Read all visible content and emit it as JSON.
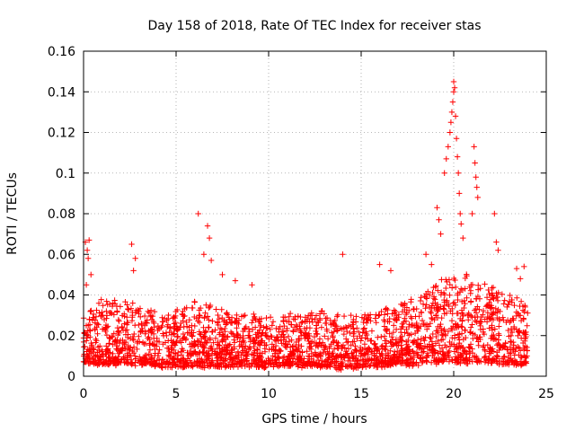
{
  "chart_data": {
    "type": "scatter",
    "title": "Day 158 of 2018, Rate Of TEC Index for receiver stas",
    "xlabel": "GPS time / hours",
    "ylabel": "ROTI / TECUs",
    "xlim": [
      0,
      25
    ],
    "ylim": [
      0,
      0.16
    ],
    "x_ticks": [
      0,
      5,
      10,
      15,
      20,
      25
    ],
    "x_tick_labels": [
      "0",
      "5",
      "10",
      "15",
      "20",
      "25"
    ],
    "y_ticks": [
      0,
      0.02,
      0.04,
      0.06,
      0.08,
      0.1,
      0.12,
      0.14,
      0.16
    ],
    "y_tick_labels": [
      "0",
      "0.02",
      "0.04",
      "0.06",
      "0.08",
      "0.1",
      "0.12",
      "0.14",
      "0.16"
    ],
    "grid": true,
    "marker": "+",
    "color": "#ff0000",
    "series": [
      {
        "name": "ROTI",
        "points": [
          [
            0.1,
            0.066
          ],
          [
            0.2,
            0.062
          ],
          [
            0.25,
            0.058
          ],
          [
            0.3,
            0.067
          ],
          [
            0.15,
            0.045
          ],
          [
            0.4,
            0.05
          ],
          [
            2.6,
            0.065
          ],
          [
            2.8,
            0.058
          ],
          [
            2.7,
            0.052
          ],
          [
            6.2,
            0.08
          ],
          [
            6.7,
            0.074
          ],
          [
            6.8,
            0.068
          ],
          [
            6.5,
            0.06
          ],
          [
            6.9,
            0.057
          ],
          [
            7.5,
            0.05
          ],
          [
            8.2,
            0.047
          ],
          [
            9.1,
            0.045
          ],
          [
            14.0,
            0.06
          ],
          [
            16.0,
            0.055
          ],
          [
            16.6,
            0.052
          ],
          [
            18.5,
            0.06
          ],
          [
            18.8,
            0.055
          ],
          [
            19.1,
            0.083
          ],
          [
            19.2,
            0.077
          ],
          [
            19.3,
            0.07
          ],
          [
            19.5,
            0.1
          ],
          [
            19.6,
            0.107
          ],
          [
            19.7,
            0.113
          ],
          [
            19.8,
            0.12
          ],
          [
            19.85,
            0.125
          ],
          [
            19.9,
            0.13
          ],
          [
            19.95,
            0.135
          ],
          [
            20.0,
            0.14
          ],
          [
            20.0,
            0.145
          ],
          [
            20.05,
            0.142
          ],
          [
            20.1,
            0.128
          ],
          [
            20.15,
            0.117
          ],
          [
            20.2,
            0.108
          ],
          [
            20.25,
            0.1
          ],
          [
            20.3,
            0.09
          ],
          [
            20.35,
            0.08
          ],
          [
            20.4,
            0.075
          ],
          [
            20.5,
            0.068
          ],
          [
            21.1,
            0.113
          ],
          [
            21.15,
            0.105
          ],
          [
            21.2,
            0.098
          ],
          [
            21.25,
            0.093
          ],
          [
            21.3,
            0.088
          ],
          [
            21.0,
            0.08
          ],
          [
            22.2,
            0.08
          ],
          [
            22.3,
            0.066
          ],
          [
            22.4,
            0.062
          ],
          [
            23.4,
            0.053
          ],
          [
            23.8,
            0.054
          ],
          [
            23.6,
            0.048
          ]
        ],
        "density_envelope": [
          [
            0,
            0.03,
            0.007
          ],
          [
            1,
            0.038,
            0.006
          ],
          [
            2,
            0.037,
            0.006
          ],
          [
            3,
            0.035,
            0.006
          ],
          [
            4,
            0.031,
            0.005
          ],
          [
            5,
            0.033,
            0.005
          ],
          [
            6,
            0.036,
            0.005
          ],
          [
            7,
            0.035,
            0.005
          ],
          [
            8,
            0.032,
            0.005
          ],
          [
            9,
            0.03,
            0.005
          ],
          [
            10,
            0.03,
            0.005
          ],
          [
            11,
            0.031,
            0.005
          ],
          [
            12,
            0.031,
            0.005
          ],
          [
            13,
            0.033,
            0.005
          ],
          [
            14,
            0.03,
            0.004
          ],
          [
            15,
            0.031,
            0.005
          ],
          [
            16,
            0.033,
            0.005
          ],
          [
            17,
            0.036,
            0.006
          ],
          [
            18,
            0.038,
            0.006
          ],
          [
            19,
            0.045,
            0.007
          ],
          [
            20,
            0.05,
            0.007
          ],
          [
            21,
            0.05,
            0.007
          ],
          [
            22,
            0.045,
            0.007
          ],
          [
            23,
            0.04,
            0.006
          ],
          [
            24,
            0.035,
            0.006
          ]
        ]
      }
    ]
  }
}
